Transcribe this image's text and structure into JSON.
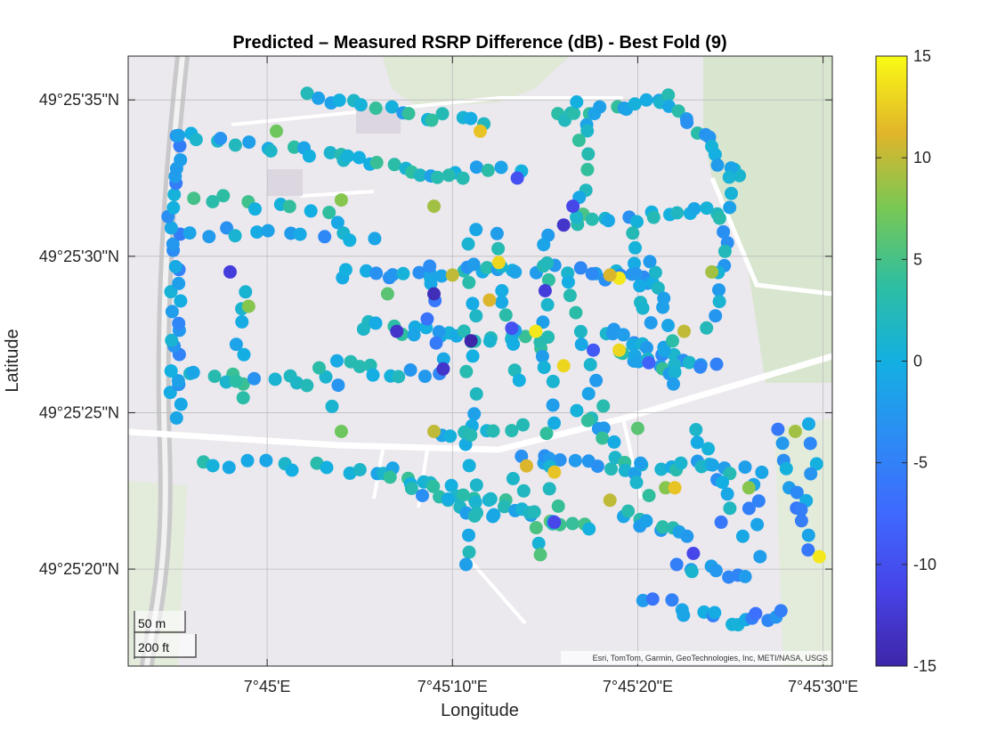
{
  "chart_data": {
    "type": "scatter",
    "title": "Predicted – Measured RSRP Difference (dB) - Best Fold (9)",
    "xlabel": "Longitude",
    "ylabel": "Latitude",
    "xlim": [
      -7.5,
      30.5
    ],
    "ylim": [
      16.9,
      36.4
    ],
    "x_unit": "arcsec past 7°45'E",
    "y_unit": "arcsec past 49°25'N",
    "x_ticks": [
      {
        "value": 0,
        "label": "7°45'E"
      },
      {
        "value": 10,
        "label": "7°45'10\"E"
      },
      {
        "value": 20,
        "label": "7°45'20\"E"
      },
      {
        "value": 30,
        "label": "7°45'30\"E"
      }
    ],
    "y_ticks": [
      {
        "value": 35,
        "label": "49°25'35\"N"
      },
      {
        "value": 30,
        "label": "49°25'30\"N"
      },
      {
        "value": 25,
        "label": "49°25'25\"N"
      },
      {
        "value": 20,
        "label": "49°25'20\"N"
      }
    ],
    "grid": true,
    "basemap_attribution": "Esri, TomTom, Garmin, GeoTechnologies, Inc, METI/NASA, USGS",
    "scalebar": {
      "metric": "50 m",
      "imperial": "200 ft"
    },
    "colorbar": {
      "label": "",
      "min": -15,
      "max": 15,
      "ticks": [
        15,
        10,
        5,
        0,
        -5,
        -10,
        -15
      ],
      "colormap": "parula"
    },
    "point_segments": [
      {
        "from": [
          -5.0,
          24.9
        ],
        "to": [
          -5.0,
          33.8
        ],
        "n": 30,
        "v": -2
      },
      {
        "from": [
          -5.0,
          33.8
        ],
        "to": [
          4.0,
          33.2
        ],
        "n": 14,
        "v": 0
      },
      {
        "from": [
          4.0,
          33.2
        ],
        "to": [
          10.0,
          32.6
        ],
        "n": 12,
        "v": 1
      },
      {
        "from": [
          10.0,
          32.6
        ],
        "to": [
          13.5,
          32.8
        ],
        "n": 6,
        "v": 0
      },
      {
        "from": [
          2.0,
          35.2
        ],
        "to": [
          11.5,
          34.2
        ],
        "n": 16,
        "v": 1
      },
      {
        "from": [
          -4.0,
          32.0
        ],
        "to": [
          4.0,
          31.2
        ],
        "n": 10,
        "v": 2
      },
      {
        "from": [
          -4.0,
          30.8
        ],
        "to": [
          5.5,
          30.6
        ],
        "n": 12,
        "v": -1
      },
      {
        "from": [
          -1.5,
          28.8
        ],
        "to": [
          -1.5,
          25.4
        ],
        "n": 8,
        "v": 1
      },
      {
        "from": [
          -4.5,
          26.2
        ],
        "to": [
          4.0,
          26.0
        ],
        "n": 12,
        "v": 0
      },
      {
        "from": [
          -3.5,
          23.4
        ],
        "to": [
          6.0,
          23.2
        ],
        "n": 12,
        "v": 2
      },
      {
        "from": [
          6.0,
          23.2
        ],
        "to": [
          14.0,
          21.8
        ],
        "n": 18,
        "v": 1
      },
      {
        "from": [
          14.0,
          21.8
        ],
        "to": [
          17.5,
          21.2
        ],
        "n": 8,
        "v": 3
      },
      {
        "from": [
          4.0,
          29.4
        ],
        "to": [
          16.0,
          29.6
        ],
        "n": 22,
        "v": 0
      },
      {
        "from": [
          5.0,
          27.8
        ],
        "to": [
          15.0,
          27.2
        ],
        "n": 20,
        "v": 1
      },
      {
        "from": [
          11.0,
          30.8
        ],
        "to": [
          11.0,
          20.0
        ],
        "n": 20,
        "v": 0
      },
      {
        "from": [
          8.5,
          29.6
        ],
        "to": [
          9.5,
          26.2
        ],
        "n": 8,
        "v": -4
      },
      {
        "from": [
          3.0,
          26.6
        ],
        "to": [
          8.5,
          26.2
        ],
        "n": 10,
        "v": 0
      },
      {
        "from": [
          9.5,
          24.2
        ],
        "to": [
          13.5,
          24.6
        ],
        "n": 8,
        "v": 2
      },
      {
        "from": [
          14.0,
          23.6
        ],
        "to": [
          18.5,
          23.2
        ],
        "n": 8,
        "v": 0
      },
      {
        "from": [
          15.0,
          30.8
        ],
        "to": [
          15.5,
          21.5
        ],
        "n": 18,
        "v": 1
      },
      {
        "from": [
          16.5,
          29.2
        ],
        "to": [
          18.0,
          24.6
        ],
        "n": 10,
        "v": 0
      },
      {
        "from": [
          15.5,
          34.4
        ],
        "to": [
          21.5,
          35.0
        ],
        "n": 14,
        "v": 1
      },
      {
        "from": [
          17.0,
          34.8
        ],
        "to": [
          17.0,
          31.0
        ],
        "n": 10,
        "v": 2
      },
      {
        "from": [
          21.5,
          35.0
        ],
        "to": [
          25.5,
          32.5
        ],
        "n": 14,
        "v": 0
      },
      {
        "from": [
          17.0,
          31.2
        ],
        "to": [
          24.5,
          31.4
        ],
        "n": 14,
        "v": 0
      },
      {
        "from": [
          25.0,
          32.8
        ],
        "to": [
          24.0,
          27.8
        ],
        "n": 14,
        "v": 0
      },
      {
        "from": [
          17.0,
          29.5
        ],
        "to": [
          21.0,
          29.2
        ],
        "n": 10,
        "v": -1
      },
      {
        "from": [
          18.0,
          27.6
        ],
        "to": [
          24.0,
          26.4
        ],
        "n": 16,
        "v": -2
      },
      {
        "from": [
          19.0,
          26.8
        ],
        "to": [
          22.0,
          26.4
        ],
        "n": 10,
        "v": 1
      },
      {
        "from": [
          17.0,
          25.2
        ],
        "to": [
          20.5,
          22.5
        ],
        "n": 12,
        "v": 1
      },
      {
        "from": [
          20.0,
          23.4
        ],
        "to": [
          25.5,
          23.2
        ],
        "n": 12,
        "v": 0
      },
      {
        "from": [
          19.0,
          21.8
        ],
        "to": [
          23.0,
          21.0
        ],
        "n": 10,
        "v": 1
      },
      {
        "from": [
          22.0,
          20.2
        ],
        "to": [
          26.0,
          19.8
        ],
        "n": 8,
        "v": -2
      },
      {
        "from": [
          20.5,
          19.0
        ],
        "to": [
          25.5,
          18.3
        ],
        "n": 10,
        "v": -3
      },
      {
        "from": [
          25.5,
          18.3
        ],
        "to": [
          28.0,
          18.6
        ],
        "n": 6,
        "v": -4
      },
      {
        "from": [
          27.5,
          24.5
        ],
        "to": [
          29.5,
          20.5
        ],
        "n": 10,
        "v": -3
      },
      {
        "from": [
          29.5,
          24.6
        ],
        "to": [
          29.0,
          21.8
        ],
        "n": 6,
        "v": -2
      },
      {
        "from": [
          23.0,
          24.4
        ],
        "to": [
          25.0,
          22.0
        ],
        "n": 8,
        "v": -1
      },
      {
        "from": [
          26.5,
          23.0
        ],
        "to": [
          26.0,
          21.0
        ],
        "n": 6,
        "v": -3
      },
      {
        "from": [
          12.5,
          30.6
        ],
        "to": [
          13.5,
          26.0
        ],
        "n": 10,
        "v": 1
      },
      {
        "from": [
          19.5,
          30.6
        ],
        "to": [
          20.5,
          27.8
        ],
        "n": 8,
        "v": -1
      },
      {
        "from": [
          21.0,
          30.0
        ],
        "to": [
          22.0,
          26.0
        ],
        "n": 10,
        "v": 0
      },
      {
        "from": [
          13.5,
          22.8
        ],
        "to": [
          15.0,
          20.5
        ],
        "n": 6,
        "v": 3
      },
      {
        "from": [
          8.0,
          22.6
        ],
        "to": [
          12.5,
          21.6
        ],
        "n": 10,
        "v": 0
      }
    ],
    "extra_points": [
      [
        -2.0,
        29.5,
        -12
      ],
      [
        -1.0,
        28.4,
        8
      ],
      [
        3.5,
        25.2,
        1
      ],
      [
        9.0,
        28.8,
        -14
      ],
      [
        10.0,
        29.4,
        10
      ],
      [
        12.0,
        28.6,
        11
      ],
      [
        12.5,
        29.8,
        13
      ],
      [
        11.0,
        27.3,
        -15
      ],
      [
        9.5,
        26.4,
        -13
      ],
      [
        14.5,
        27.6,
        14
      ],
      [
        16.0,
        26.5,
        13
      ],
      [
        15.0,
        28.9,
        -12
      ],
      [
        19.0,
        29.3,
        14
      ],
      [
        18.5,
        29.4,
        11
      ],
      [
        9.0,
        24.4,
        10
      ],
      [
        14.0,
        23.3,
        11
      ],
      [
        15.5,
        23.1,
        12
      ],
      [
        15.5,
        21.5,
        -11
      ],
      [
        18.5,
        22.2,
        10
      ],
      [
        21.5,
        22.6,
        8
      ],
      [
        22.0,
        22.6,
        12
      ],
      [
        23.0,
        20.5,
        -11
      ],
      [
        24.5,
        21.5,
        -6
      ],
      [
        28.5,
        24.4,
        9
      ],
      [
        29.8,
        20.4,
        14
      ],
      [
        26.0,
        22.6,
        8
      ],
      [
        20.0,
        24.5,
        6
      ],
      [
        16.0,
        31.0,
        -13
      ],
      [
        16.5,
        31.6,
        -11
      ],
      [
        13.5,
        32.5,
        -10
      ],
      [
        9.0,
        31.6,
        9
      ],
      [
        11.5,
        34.0,
        12
      ],
      [
        4.0,
        31.8,
        8
      ],
      [
        0.5,
        34.0,
        7
      ],
      [
        19.0,
        27.0,
        13
      ],
      [
        22.5,
        27.6,
        10
      ],
      [
        24.0,
        29.5,
        9
      ],
      [
        7.0,
        27.6,
        -13
      ],
      [
        4.0,
        24.4,
        7
      ],
      [
        6.5,
        28.8,
        6
      ],
      [
        13.2,
        27.7,
        -10
      ],
      [
        17.6,
        27.0,
        -9
      ],
      [
        20.6,
        26.6,
        -8
      ],
      [
        26.6,
        20.4,
        -2
      ]
    ]
  }
}
